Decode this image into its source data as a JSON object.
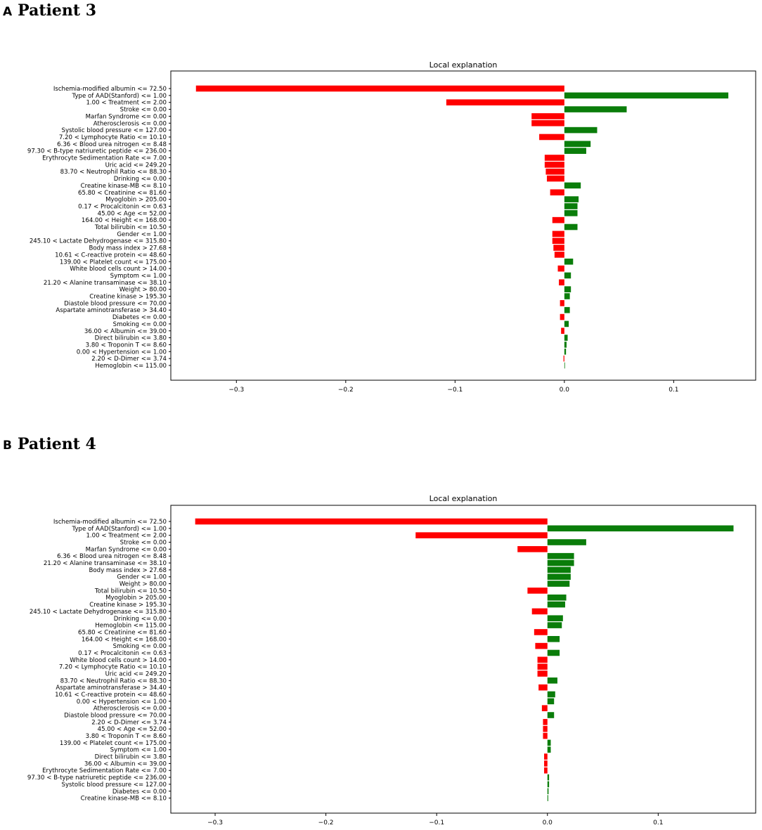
{
  "panels": [
    {
      "letter": "A",
      "title": "Patient 3"
    },
    {
      "letter": "B",
      "title": "Patient 4"
    }
  ],
  "colors": {
    "positive": "#0a7d0a",
    "negative": "#ff0000"
  },
  "chart_data": [
    {
      "type": "bar",
      "orientation": "horizontal",
      "title": "Local explanation",
      "xlim": [
        -0.36,
        0.175
      ],
      "xticks": [
        -0.3,
        -0.2,
        -0.1,
        0.0,
        0.1
      ],
      "xtick_labels": [
        "−0.3",
        "−0.2",
        "−0.1",
        "0.0",
        "0.1"
      ],
      "categories": [
        "Ischemia-modified albumin <= 72.50",
        "Type of AAD(Stanford) <= 1.00",
        "1.00 < Treatment <= 2.00",
        "Stroke <= 0.00",
        "Marfan Syndrome <= 0.00",
        "Atherosclerosis <= 0.00",
        "Systolic blood pressure <= 127.00",
        "7.20 < Lymphocyte Ratio <= 10.10",
        "6.36 < Blood urea nitrogen <= 8.48",
        "97.30 < B-type natriuretic peptide <= 236.00",
        "Erythrocyte Sedimentation Rate <= 7.00",
        "Uric acid <= 249.20",
        "83.70 < Neutrophil Ratio <= 88.30",
        "Drinking <= 0.00",
        "Creatine kinase-MB <= 8.10",
        "65.80 < Creatinine <= 81.60",
        "Myoglobin > 205.00",
        "0.17 < Procalcitonin <= 0.63",
        "45.00 < Age <= 52.00",
        "164.00 < Height <= 168.00",
        "Total bilirubin <= 10.50",
        "Gender <= 1.00",
        "245.10 < Lactate Dehydrogenase <= 315.80",
        "Body mass index > 27.68",
        "10.61 < C-reactive protein <= 48.60",
        "139.00 < Platelet count <= 175.00",
        "White blood cells count > 14.00",
        "Symptom <= 1.00",
        "21.20 < Alanine transaminase <= 38.10",
        "Weight > 80.00",
        "Creatine kinase > 195.30",
        "Diastole blood pressure <= 70.00",
        "Aspartate aminotransferase > 34.40",
        "Diabetes <= 0.00",
        "Smoking <= 0.00",
        "36.00 < Albumin <= 39.00",
        "Direct bilirubin <= 3.80",
        "3.80 < Troponin T <= 8.60",
        "0.00 < Hypertension <= 1.00",
        "2.20 < D-Dimer <= 3.74",
        "Hemoglobin <= 115.00"
      ],
      "values": [
        -0.337,
        0.15,
        -0.108,
        0.057,
        -0.03,
        -0.03,
        0.03,
        -0.023,
        0.024,
        0.02,
        -0.018,
        -0.018,
        -0.017,
        -0.016,
        0.015,
        -0.013,
        0.013,
        0.012,
        0.012,
        -0.011,
        0.012,
        -0.011,
        -0.011,
        -0.01,
        -0.009,
        0.008,
        -0.006,
        0.006,
        -0.005,
        0.006,
        0.005,
        -0.004,
        0.005,
        -0.004,
        0.004,
        -0.003,
        0.003,
        0.002,
        0.0015,
        -0.0008,
        0.0005
      ]
    },
    {
      "type": "bar",
      "orientation": "horizontal",
      "title": "Local explanation",
      "xlim": [
        -0.34,
        0.188
      ],
      "xticks": [
        -0.3,
        -0.2,
        -0.1,
        0.0,
        0.1
      ],
      "xtick_labels": [
        "−0.3",
        "−0.2",
        "−0.1",
        "0.0",
        "0.1"
      ],
      "categories": [
        "Ischemia-modified albumin <= 72.50",
        "Type of AAD(Stanford) <= 1.00",
        "1.00 < Treatment <= 2.00",
        "Stroke <= 0.00",
        "Marfan Syndrome <= 0.00",
        "6.36 < Blood urea nitrogen <= 8.48",
        "21.20 < Alanine transaminase <= 38.10",
        "Body mass index > 27.68",
        "Gender <= 1.00",
        "Weight > 80.00",
        "Total bilirubin <= 10.50",
        "Myoglobin > 205.00",
        "Creatine kinase > 195.30",
        "245.10 < Lactate Dehydrogenase <= 315.80",
        "Drinking <= 0.00",
        "Hemoglobin <= 115.00",
        "65.80 < Creatinine <= 81.60",
        "164.00 < Height <= 168.00",
        "Smoking <= 0.00",
        "0.17 < Procalcitonin <= 0.63",
        "White blood cells count > 14.00",
        "7.20 < Lymphocyte Ratio <= 10.10",
        "Uric acid <= 249.20",
        "83.70 < Neutrophil Ratio <= 88.30",
        "Aspartate aminotransferase > 34.40",
        "10.61 < C-reactive protein <= 48.60",
        "0.00 < Hypertension <= 1.00",
        "Atherosclerosis <= 0.00",
        "Diastole blood pressure <= 70.00",
        "2.20 < D-Dimer <= 3.74",
        "45.00 < Age <= 52.00",
        "3.80 < Troponin T <= 8.60",
        "139.00 < Platelet count <= 175.00",
        "Symptom <= 1.00",
        "Direct bilirubin <= 3.80",
        "36.00 < Albumin <= 39.00",
        "Erythrocyte Sedimentation Rate <= 7.00",
        "97.30 < B-type natriuretic peptide <= 236.00",
        "Systolic blood pressure <= 127.00",
        "Diabetes <= 0.00",
        "Creatine kinase-MB <= 8.10"
      ],
      "values": [
        -0.318,
        0.168,
        -0.119,
        0.035,
        -0.027,
        0.024,
        0.024,
        0.021,
        0.021,
        0.02,
        -0.018,
        0.017,
        0.016,
        -0.014,
        0.014,
        0.013,
        -0.012,
        0.011,
        -0.011,
        0.011,
        -0.009,
        -0.009,
        -0.009,
        0.009,
        -0.008,
        0.007,
        0.006,
        -0.005,
        0.006,
        -0.004,
        -0.004,
        -0.004,
        0.003,
        0.003,
        -0.003,
        -0.003,
        -0.003,
        0.0015,
        0.0015,
        0.001,
        0.0007
      ]
    }
  ]
}
